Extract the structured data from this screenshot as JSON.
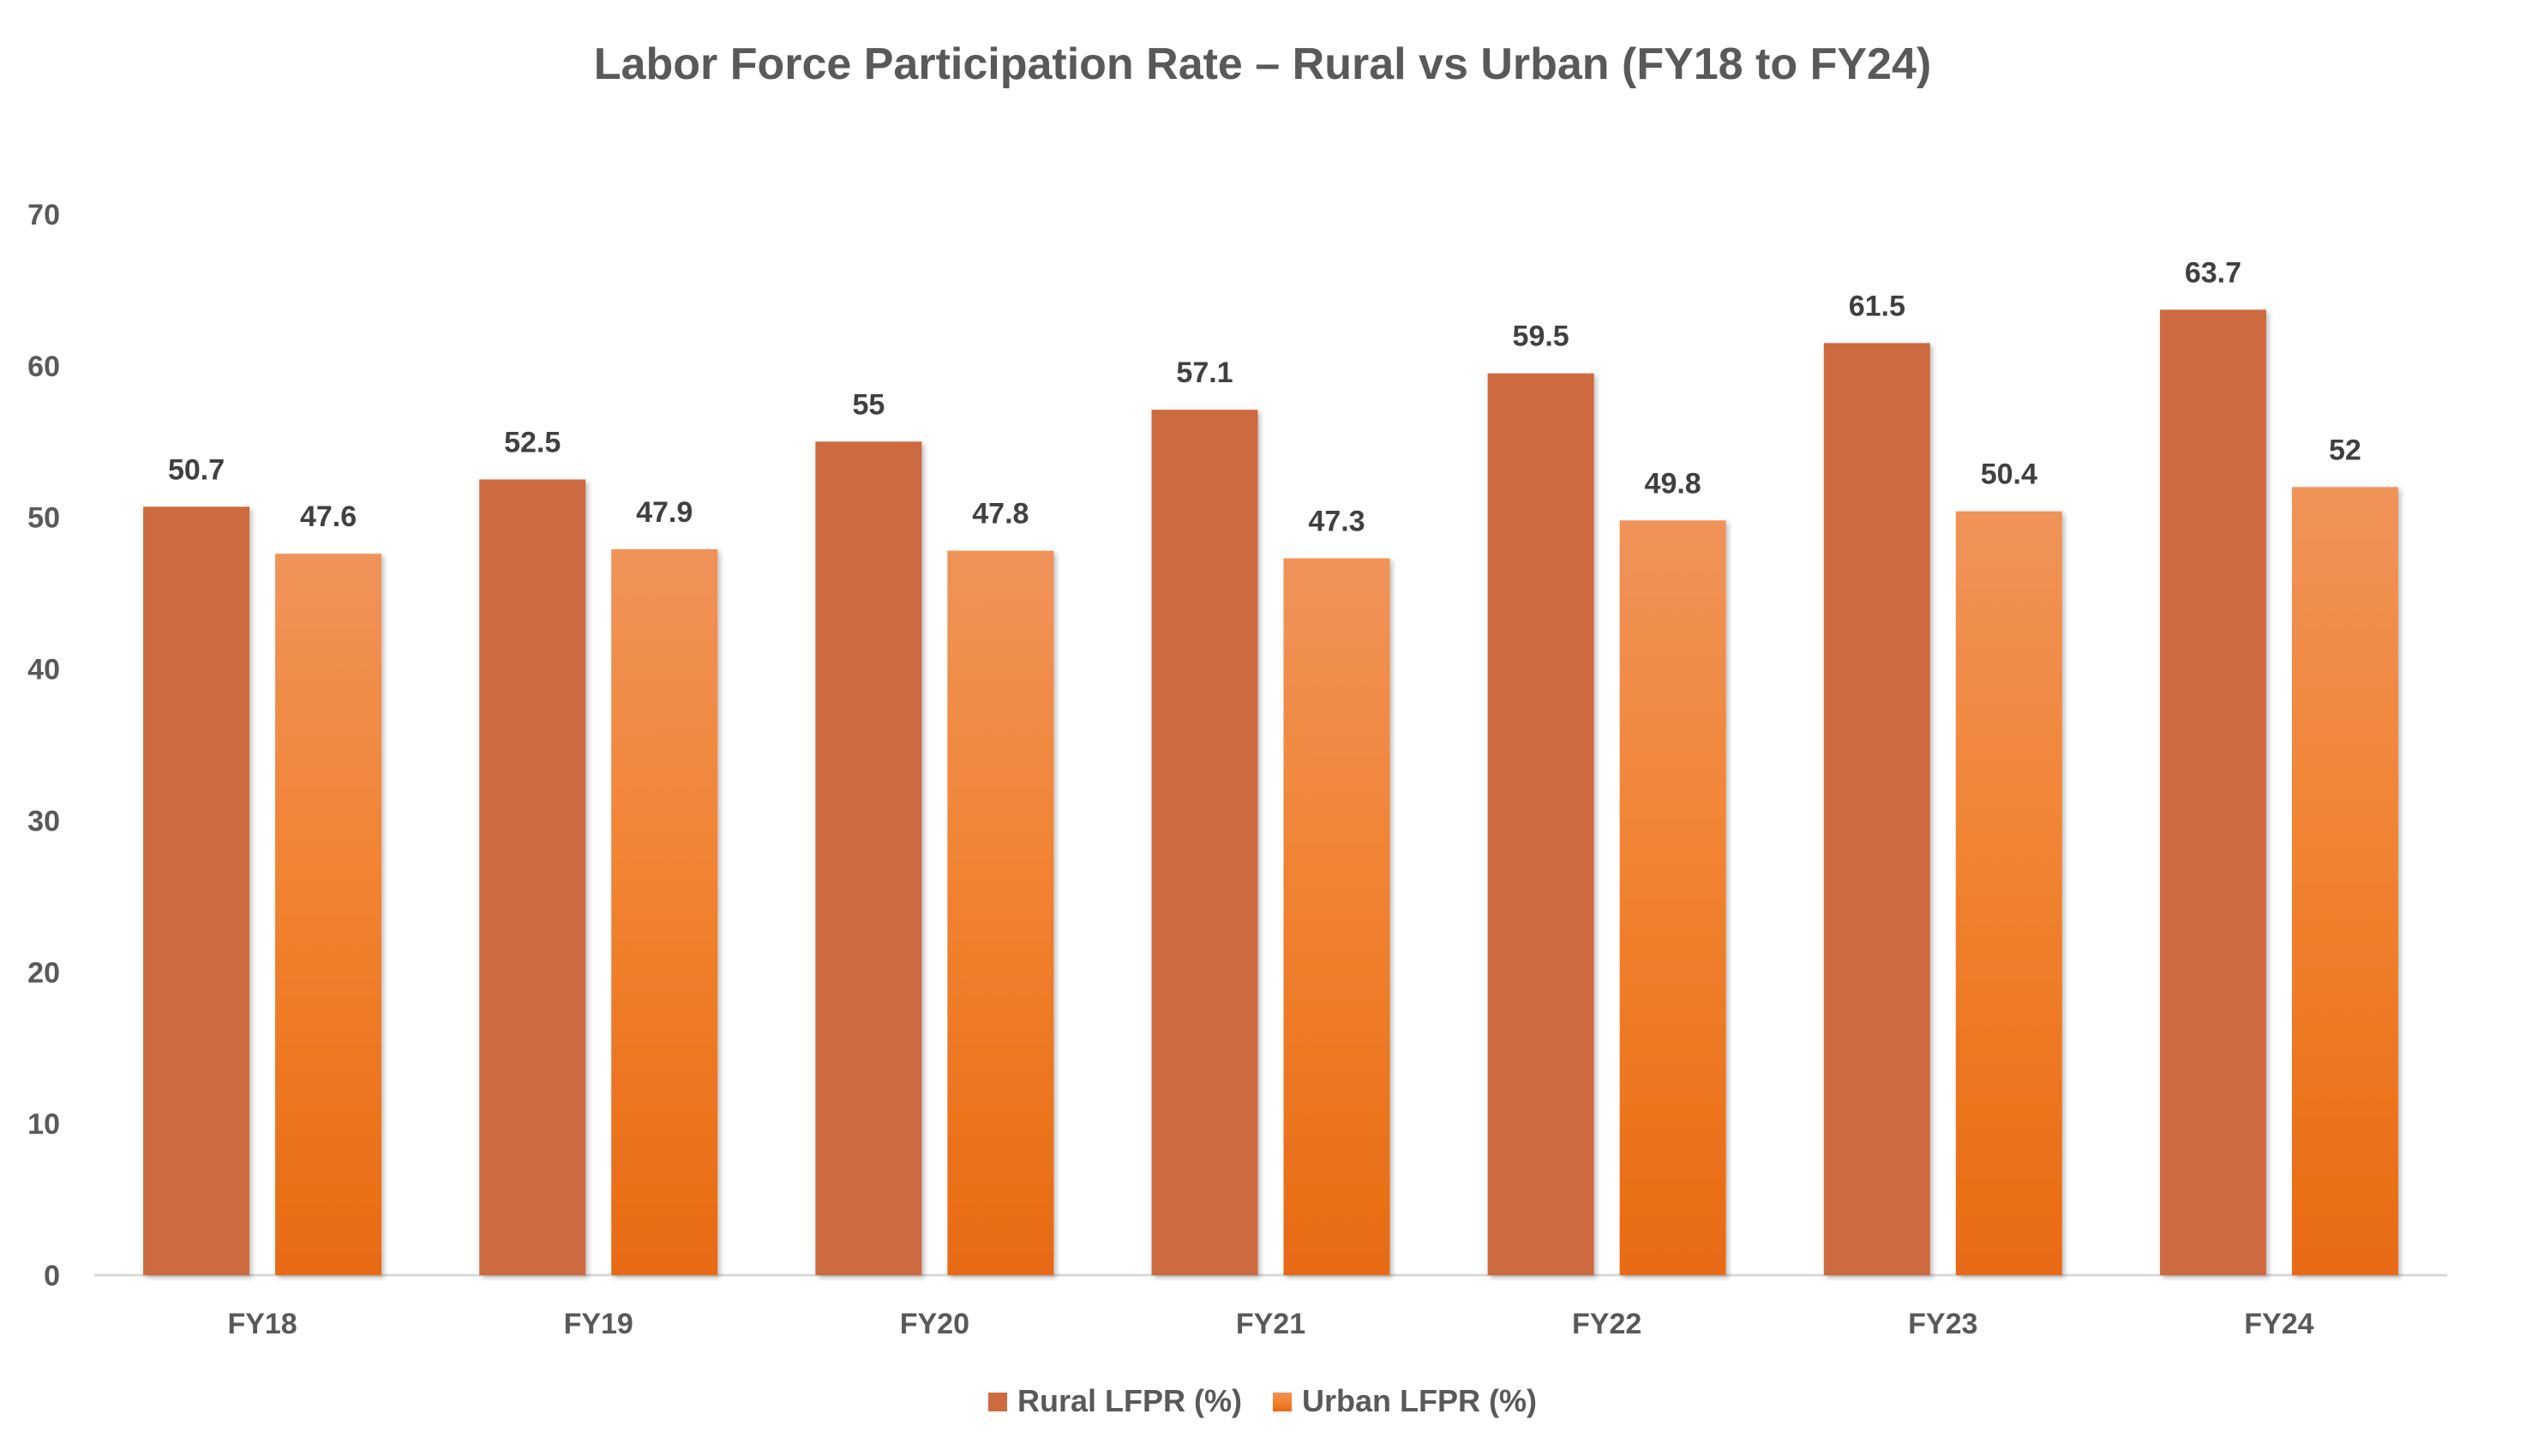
{
  "chart_data": {
    "type": "bar",
    "title": "Labor Force Participation Rate – Rural vs Urban (FY18 to FY24)",
    "xlabel": "",
    "ylabel": "",
    "categories": [
      "FY18",
      "FY19",
      "FY20",
      "FY21",
      "FY22",
      "FY23",
      "FY24"
    ],
    "series": [
      {
        "name": "Rural LFPR (%)",
        "values": [
          50.7,
          52.5,
          55,
          57.1,
          59.5,
          61.5,
          63.7
        ],
        "color": "#CD6A3F"
      },
      {
        "name": "Urban LFPR (%)",
        "values": [
          47.6,
          47.9,
          47.8,
          47.3,
          49.8,
          50.4,
          52
        ],
        "color": "#F07A24"
      }
    ],
    "ylim": [
      0,
      70
    ],
    "yticks": [
      0,
      10,
      20,
      30,
      40,
      50,
      60,
      70
    ],
    "grid": false,
    "data_labels": true,
    "legend_position": "bottom"
  }
}
